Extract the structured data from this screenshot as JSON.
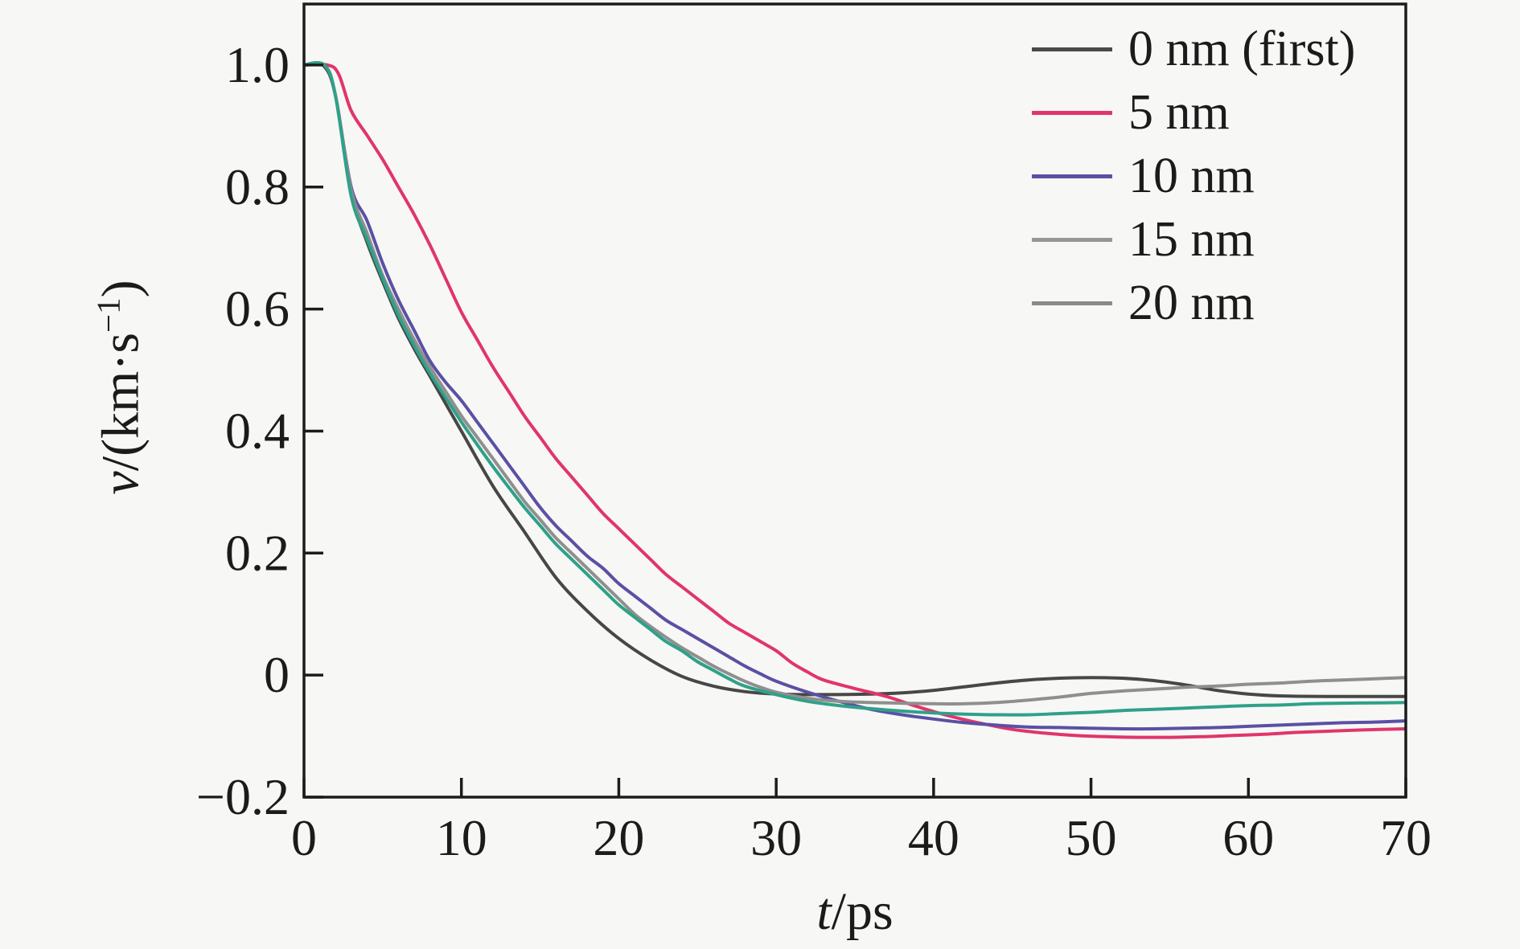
{
  "figure": {
    "background": "#f7f7f5",
    "axis_color": "#1c1c1c",
    "text_color": "#1b1b1b"
  },
  "chart_data": {
    "type": "line",
    "title": "",
    "xlabel": {
      "variable": "t",
      "unit": "/ps",
      "text": "t/ps"
    },
    "ylabel": {
      "variable": "v",
      "pre": "/(km·s",
      "sup": "−1",
      "post": ")",
      "text": "v/(km·s⁻¹)"
    },
    "x_axis": {
      "min": 0,
      "max": 70,
      "tick_values": [
        0,
        10,
        20,
        30,
        40,
        50,
        60,
        70
      ],
      "tick_labels": [
        "0",
        "10",
        "20",
        "30",
        "40",
        "50",
        "60",
        "70"
      ]
    },
    "y_axis": {
      "min": -0.2,
      "max": 1.1,
      "tick_values": [
        1.0,
        0.8,
        0.6,
        0.4,
        0.2,
        0,
        -0.2
      ],
      "tick_labels": [
        "1.0",
        "0.8",
        "0.6",
        "0.4",
        "0.2",
        "0",
        "−0.2"
      ]
    },
    "legend": {
      "position": "top-right-inside",
      "border": "none"
    },
    "series": [
      {
        "label": "0 nm (first)",
        "color": "#474747",
        "legend_color": "#4a4a4a",
        "points": [
          [
            0,
            1.0
          ],
          [
            1.2,
            1.0
          ],
          [
            2,
            0.95
          ],
          [
            3,
            0.79
          ],
          [
            4,
            0.71
          ],
          [
            5,
            0.645
          ],
          [
            6,
            0.585
          ],
          [
            7,
            0.535
          ],
          [
            8,
            0.49
          ],
          [
            9,
            0.445
          ],
          [
            10,
            0.4
          ],
          [
            12,
            0.31
          ],
          [
            14,
            0.235
          ],
          [
            16,
            0.16
          ],
          [
            18,
            0.105
          ],
          [
            20,
            0.06
          ],
          [
            22,
            0.025
          ],
          [
            24,
            -0.002
          ],
          [
            26,
            -0.018
          ],
          [
            28,
            -0.027
          ],
          [
            30,
            -0.031
          ],
          [
            33,
            -0.032
          ],
          [
            36,
            -0.031
          ],
          [
            38,
            -0.029
          ],
          [
            40,
            -0.025
          ],
          [
            42,
            -0.019
          ],
          [
            44,
            -0.013
          ],
          [
            46,
            -0.008
          ],
          [
            48,
            -0.005
          ],
          [
            50,
            -0.004
          ],
          [
            52,
            -0.005
          ],
          [
            54,
            -0.009
          ],
          [
            56,
            -0.016
          ],
          [
            58,
            -0.025
          ],
          [
            60,
            -0.031
          ],
          [
            62,
            -0.034
          ],
          [
            65,
            -0.035
          ],
          [
            70,
            -0.035
          ]
        ]
      },
      {
        "label": "5 nm",
        "color": "#e0356b",
        "legend_color": "#e0356b",
        "points": [
          [
            0,
            1.0
          ],
          [
            1.5,
            1.0
          ],
          [
            2.2,
            0.985
          ],
          [
            3,
            0.925
          ],
          [
            4,
            0.885
          ],
          [
            5,
            0.845
          ],
          [
            6,
            0.8
          ],
          [
            7,
            0.755
          ],
          [
            8,
            0.705
          ],
          [
            9,
            0.65
          ],
          [
            10,
            0.595
          ],
          [
            11,
            0.55
          ],
          [
            12,
            0.505
          ],
          [
            13,
            0.465
          ],
          [
            14,
            0.425
          ],
          [
            15,
            0.39
          ],
          [
            16,
            0.355
          ],
          [
            17,
            0.325
          ],
          [
            18,
            0.295
          ],
          [
            19,
            0.265
          ],
          [
            20,
            0.24
          ],
          [
            21,
            0.215
          ],
          [
            22,
            0.19
          ],
          [
            23,
            0.165
          ],
          [
            24,
            0.145
          ],
          [
            25,
            0.125
          ],
          [
            26,
            0.105
          ],
          [
            27,
            0.085
          ],
          [
            28,
            0.07
          ],
          [
            29,
            0.055
          ],
          [
            30,
            0.04
          ],
          [
            31,
            0.02
          ],
          [
            32,
            0.005
          ],
          [
            33,
            -0.008
          ],
          [
            35,
            -0.022
          ],
          [
            37,
            -0.035
          ],
          [
            39,
            -0.052
          ],
          [
            41,
            -0.067
          ],
          [
            43,
            -0.079
          ],
          [
            45,
            -0.089
          ],
          [
            47,
            -0.095
          ],
          [
            49,
            -0.099
          ],
          [
            51,
            -0.101
          ],
          [
            53,
            -0.102
          ],
          [
            55,
            -0.102
          ],
          [
            57,
            -0.101
          ],
          [
            59,
            -0.099
          ],
          [
            61,
            -0.097
          ],
          [
            63,
            -0.094
          ],
          [
            65,
            -0.092
          ],
          [
            67,
            -0.09
          ],
          [
            70,
            -0.088
          ]
        ]
      },
      {
        "label": "10 nm",
        "color": "#5a50a4",
        "legend_color": "#5a50a4",
        "points": [
          [
            0,
            1.0
          ],
          [
            1.3,
            1.0
          ],
          [
            2,
            0.95
          ],
          [
            3,
            0.8
          ],
          [
            4,
            0.745
          ],
          [
            5,
            0.675
          ],
          [
            6,
            0.615
          ],
          [
            7,
            0.565
          ],
          [
            8,
            0.515
          ],
          [
            9,
            0.48
          ],
          [
            10,
            0.45
          ],
          [
            11,
            0.415
          ],
          [
            12,
            0.38
          ],
          [
            13,
            0.345
          ],
          [
            14,
            0.31
          ],
          [
            15,
            0.275
          ],
          [
            16,
            0.245
          ],
          [
            17,
            0.22
          ],
          [
            18,
            0.195
          ],
          [
            19,
            0.175
          ],
          [
            20,
            0.15
          ],
          [
            21,
            0.13
          ],
          [
            22,
            0.11
          ],
          [
            23,
            0.09
          ],
          [
            24,
            0.075
          ],
          [
            25,
            0.06
          ],
          [
            26,
            0.045
          ],
          [
            27,
            0.03
          ],
          [
            28,
            0.015
          ],
          [
            29,
            0.002
          ],
          [
            30,
            -0.01
          ],
          [
            32,
            -0.028
          ],
          [
            34,
            -0.043
          ],
          [
            36,
            -0.056
          ],
          [
            38,
            -0.065
          ],
          [
            40,
            -0.072
          ],
          [
            42,
            -0.078
          ],
          [
            44,
            -0.082
          ],
          [
            46,
            -0.085
          ],
          [
            48,
            -0.086
          ],
          [
            50,
            -0.087
          ],
          [
            52,
            -0.088
          ],
          [
            54,
            -0.088
          ],
          [
            56,
            -0.087
          ],
          [
            58,
            -0.086
          ],
          [
            60,
            -0.084
          ],
          [
            62,
            -0.082
          ],
          [
            64,
            -0.08
          ],
          [
            66,
            -0.078
          ],
          [
            68,
            -0.077
          ],
          [
            70,
            -0.075
          ]
        ]
      },
      {
        "label": "15 nm",
        "color": "#8f8f8f",
        "legend_color": "#969696",
        "points": [
          [
            0,
            1.0
          ],
          [
            1.3,
            1.0
          ],
          [
            2,
            0.95
          ],
          [
            3,
            0.795
          ],
          [
            4,
            0.725
          ],
          [
            5,
            0.655
          ],
          [
            6,
            0.6
          ],
          [
            7,
            0.55
          ],
          [
            8,
            0.505
          ],
          [
            9,
            0.465
          ],
          [
            10,
            0.425
          ],
          [
            11,
            0.39
          ],
          [
            12,
            0.355
          ],
          [
            13,
            0.32
          ],
          [
            14,
            0.285
          ],
          [
            15,
            0.255
          ],
          [
            16,
            0.225
          ],
          [
            17,
            0.2
          ],
          [
            18,
            0.175
          ],
          [
            19,
            0.15
          ],
          [
            20,
            0.125
          ],
          [
            21,
            0.1
          ],
          [
            22,
            0.08
          ],
          [
            23,
            0.062
          ],
          [
            24,
            0.045
          ],
          [
            25,
            0.03
          ],
          [
            26,
            0.015
          ],
          [
            27,
            0.002
          ],
          [
            28,
            -0.01
          ],
          [
            29,
            -0.02
          ],
          [
            30,
            -0.028
          ],
          [
            32,
            -0.038
          ],
          [
            34,
            -0.043
          ],
          [
            36,
            -0.045
          ],
          [
            38,
            -0.046
          ],
          [
            40,
            -0.047
          ],
          [
            42,
            -0.047
          ],
          [
            44,
            -0.045
          ],
          [
            46,
            -0.041
          ],
          [
            48,
            -0.036
          ],
          [
            50,
            -0.03
          ],
          [
            52,
            -0.026
          ],
          [
            54,
            -0.023
          ],
          [
            56,
            -0.02
          ],
          [
            58,
            -0.018
          ],
          [
            60,
            -0.015
          ],
          [
            62,
            -0.013
          ],
          [
            64,
            -0.01
          ],
          [
            66,
            -0.008
          ],
          [
            68,
            -0.006
          ],
          [
            70,
            -0.004
          ]
        ]
      },
      {
        "label": "20 nm",
        "color": "#2fa188",
        "legend_color": "#8a8a8a",
        "points": [
          [
            0,
            1.0
          ],
          [
            1.3,
            1.0
          ],
          [
            2,
            0.95
          ],
          [
            3,
            0.785
          ],
          [
            4,
            0.715
          ],
          [
            5,
            0.65
          ],
          [
            6,
            0.59
          ],
          [
            7,
            0.54
          ],
          [
            8,
            0.495
          ],
          [
            9,
            0.455
          ],
          [
            10,
            0.415
          ],
          [
            11,
            0.378
          ],
          [
            12,
            0.342
          ],
          [
            13,
            0.308
          ],
          [
            14,
            0.275
          ],
          [
            15,
            0.245
          ],
          [
            16,
            0.215
          ],
          [
            17,
            0.19
          ],
          [
            18,
            0.165
          ],
          [
            19,
            0.14
          ],
          [
            20,
            0.115
          ],
          [
            21,
            0.095
          ],
          [
            22,
            0.075
          ],
          [
            23,
            0.055
          ],
          [
            24,
            0.04
          ],
          [
            25,
            0.022
          ],
          [
            26,
            0.008
          ],
          [
            27,
            -0.006
          ],
          [
            28,
            -0.018
          ],
          [
            30,
            -0.032
          ],
          [
            32,
            -0.043
          ],
          [
            34,
            -0.05
          ],
          [
            36,
            -0.055
          ],
          [
            38,
            -0.059
          ],
          [
            40,
            -0.062
          ],
          [
            42,
            -0.064
          ],
          [
            44,
            -0.065
          ],
          [
            46,
            -0.065
          ],
          [
            48,
            -0.063
          ],
          [
            50,
            -0.061
          ],
          [
            52,
            -0.058
          ],
          [
            54,
            -0.056
          ],
          [
            56,
            -0.054
          ],
          [
            58,
            -0.052
          ],
          [
            60,
            -0.05
          ],
          [
            62,
            -0.049
          ],
          [
            64,
            -0.047
          ],
          [
            66,
            -0.046
          ],
          [
            68,
            -0.0455
          ],
          [
            70,
            -0.045
          ]
        ]
      }
    ]
  }
}
